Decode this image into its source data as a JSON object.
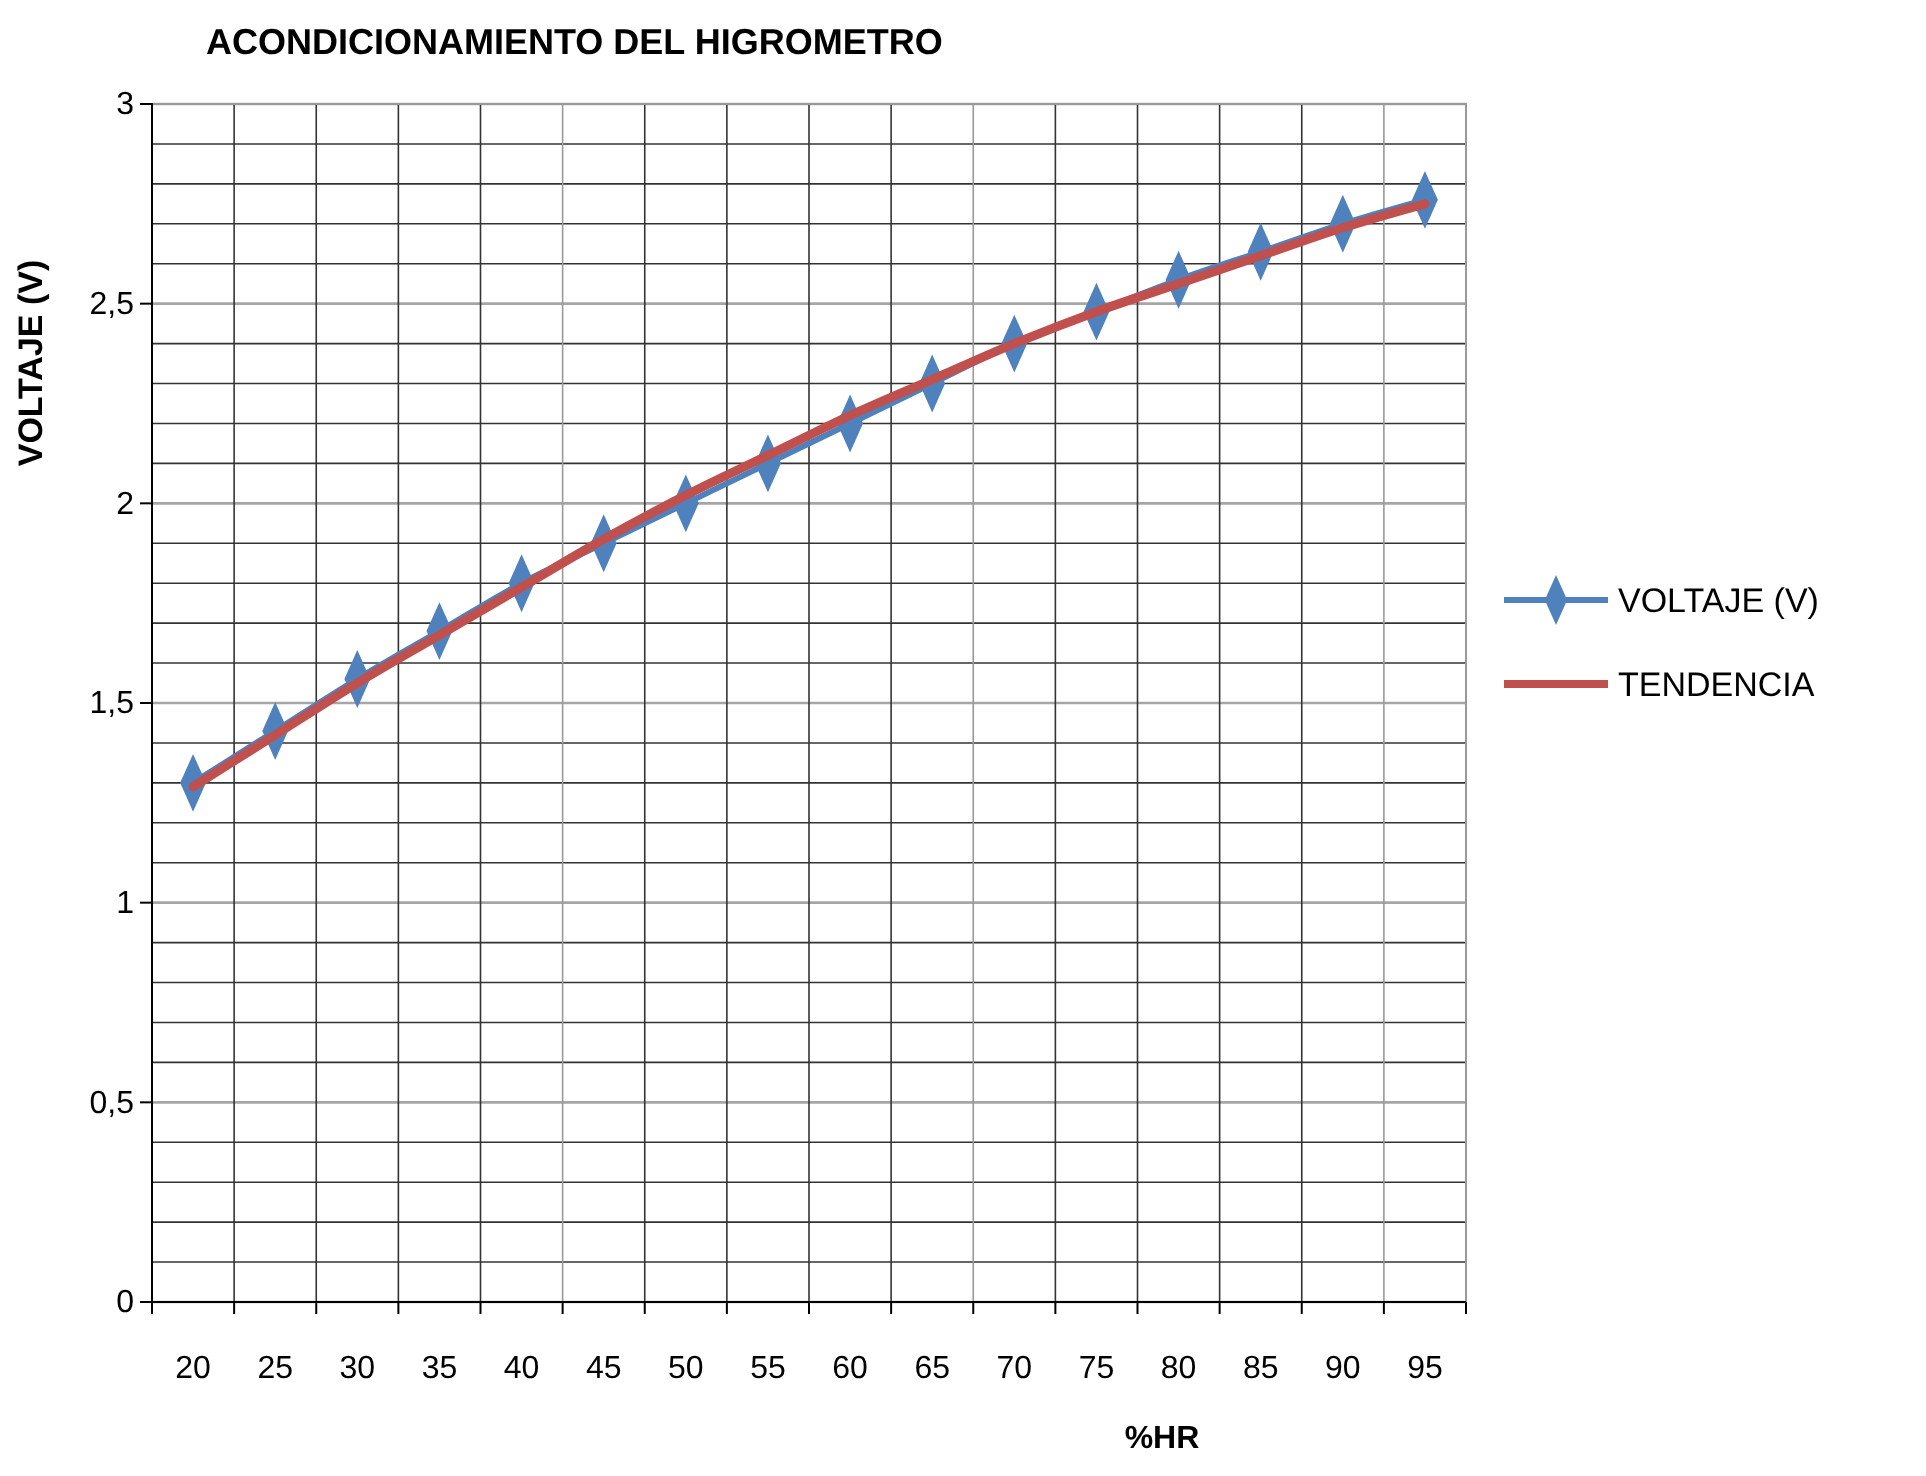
{
  "chart_data": {
    "type": "line",
    "title": "ACONDICIONAMIENTO DEL HIGROMETRO",
    "xlabel": "%HR",
    "ylabel": "VOLTAJE (V)",
    "categories": [
      "20",
      "25",
      "30",
      "35",
      "40",
      "45",
      "50",
      "55",
      "60",
      "65",
      "70",
      "75",
      "80",
      "85",
      "90",
      "95"
    ],
    "series": [
      {
        "name": "VOLTAJE (V)",
        "color": "#4f81bd",
        "marker": "diamond",
        "values": [
          1.3,
          1.43,
          1.56,
          1.68,
          1.8,
          1.9,
          2.0,
          2.1,
          2.2,
          2.3,
          2.4,
          2.48,
          2.56,
          2.63,
          2.7,
          2.76
        ]
      },
      {
        "name": "TENDENCIA",
        "color": "#c0504d",
        "marker": "none",
        "values": [
          1.29,
          1.42,
          1.55,
          1.67,
          1.79,
          1.91,
          2.02,
          2.12,
          2.22,
          2.31,
          2.4,
          2.48,
          2.55,
          2.62,
          2.69,
          2.75
        ]
      }
    ],
    "ylim": [
      0,
      3
    ],
    "yticks": [
      {
        "value": 0,
        "label": "0"
      },
      {
        "value": 0.1,
        "label": null
      },
      {
        "value": 0.2,
        "label": null
      },
      {
        "value": 0.3,
        "label": null
      },
      {
        "value": 0.4,
        "label": null
      },
      {
        "value": 0.5,
        "label": "0,5"
      },
      {
        "value": 0.6,
        "label": null
      },
      {
        "value": 0.7,
        "label": null
      },
      {
        "value": 0.8,
        "label": null
      },
      {
        "value": 0.9,
        "label": null
      },
      {
        "value": 1,
        "label": "1"
      },
      {
        "value": 1.1,
        "label": null
      },
      {
        "value": 1.2,
        "label": null
      },
      {
        "value": 1.3,
        "label": null
      },
      {
        "value": 1.4,
        "label": null
      },
      {
        "value": 1.5,
        "label": "1,5"
      },
      {
        "value": 1.6,
        "label": null
      },
      {
        "value": 1.7,
        "label": null
      },
      {
        "value": 1.8,
        "label": null
      },
      {
        "value": 1.9,
        "label": null
      },
      {
        "value": 2,
        "label": "2"
      },
      {
        "value": 2.1,
        "label": null
      },
      {
        "value": 2.2,
        "label": null
      },
      {
        "value": 2.3,
        "label": null
      },
      {
        "value": 2.4,
        "label": null
      },
      {
        "value": 2.5,
        "label": "2,5"
      },
      {
        "value": 2.6,
        "label": null
      },
      {
        "value": 2.7,
        "label": null
      },
      {
        "value": 2.8,
        "label": null
      },
      {
        "value": 2.9,
        "label": null
      },
      {
        "value": 3,
        "label": "3"
      }
    ],
    "grid": true,
    "legend": "right",
    "line_style": "solid"
  }
}
